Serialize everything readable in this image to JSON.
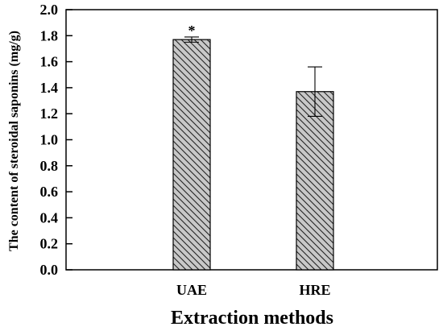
{
  "chart_data": {
    "type": "bar",
    "title": "",
    "xlabel": "Extraction methods",
    "ylabel": "The content of steroidal saponins (mg/g)",
    "categories": [
      "UAE",
      "HRE"
    ],
    "values": [
      1.77,
      1.37
    ],
    "errors": [
      0.02,
      0.19
    ],
    "annotations": [
      "*",
      ""
    ],
    "ylim": [
      0,
      2.0
    ],
    "yticks": [
      "0.0",
      "0.2",
      "0.4",
      "0.6",
      "0.8",
      "1.0",
      "1.2",
      "1.4",
      "1.6",
      "1.8",
      "2.0"
    ],
    "grid": false,
    "bar_fill": "#c8c8c8",
    "bar_hatch": "diagonal",
    "axis_color": "#000000"
  }
}
